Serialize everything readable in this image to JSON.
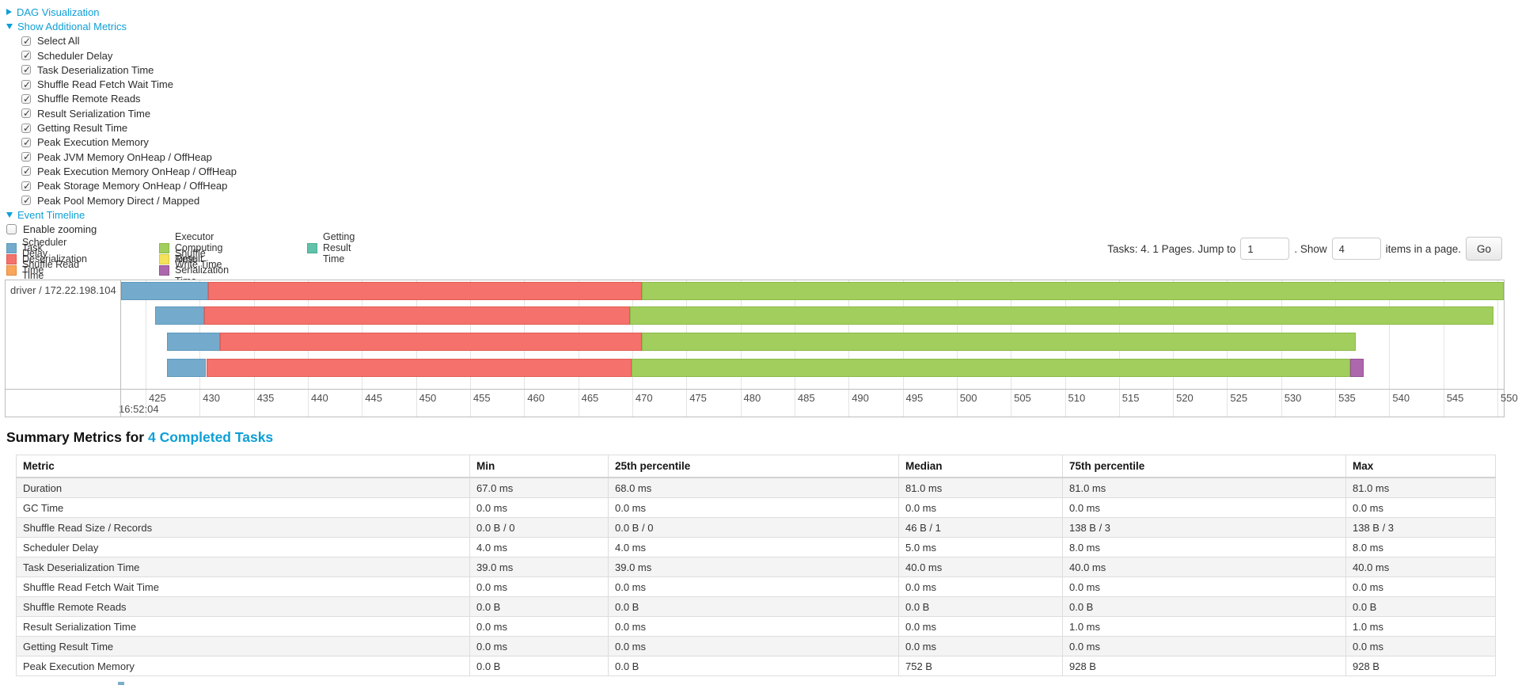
{
  "controls": {
    "dag": {
      "label": "DAG Visualization",
      "collapsed": true
    },
    "show_metrics": {
      "label": "Show Additional Metrics",
      "collapsed": false
    },
    "metric_checkboxes": [
      {
        "label": "Select All",
        "checked": true
      },
      {
        "label": "Scheduler Delay",
        "checked": true
      },
      {
        "label": "Task Deserialization Time",
        "checked": true
      },
      {
        "label": "Shuffle Read Fetch Wait Time",
        "checked": true
      },
      {
        "label": "Shuffle Remote Reads",
        "checked": true
      },
      {
        "label": "Result Serialization Time",
        "checked": true
      },
      {
        "label": "Getting Result Time",
        "checked": true
      },
      {
        "label": "Peak Execution Memory",
        "checked": true
      },
      {
        "label": "Peak JVM Memory OnHeap / OffHeap",
        "checked": true
      },
      {
        "label": "Peak Execution Memory OnHeap / OffHeap",
        "checked": true
      },
      {
        "label": "Peak Storage Memory OnHeap / OffHeap",
        "checked": true
      },
      {
        "label": "Peak Pool Memory Direct / Mapped",
        "checked": true
      }
    ],
    "event_timeline": {
      "label": "Event Timeline",
      "collapsed": false
    },
    "enable_zooming": {
      "label": "Enable zooming",
      "checked": false
    }
  },
  "pagination": {
    "tasks_text": "Tasks: 4. 1 Pages. Jump to",
    "jump_value": "1",
    "between_text": ". Show",
    "show_value": "4",
    "items_text": "items in a page.",
    "go_label": "Go"
  },
  "chart_data": {
    "type": "timeline",
    "title": "Event Timeline",
    "group_label": "driver / 172.22.198.104",
    "axis": {
      "major_label": "16:52:04",
      "unit": "milliseconds within second 16:52:04",
      "tick_start": 425,
      "tick_end": 550,
      "tick_step": 5,
      "view_min": 422.73,
      "view_max": 550.8
    },
    "colors": {
      "scheduler_delay": {
        "label": "Scheduler Delay",
        "fill": "#74ABCD",
        "border": "#5E99BD"
      },
      "task_deserialization": {
        "label": "Task Deserialization Time",
        "fill": "#F4726B",
        "border": "#E15B54"
      },
      "shuffle_read": {
        "label": "Shuffle Read Time",
        "fill": "#F9A65B",
        "border": "#E28B3B"
      },
      "executor_computing": {
        "label": "Executor Computing Time",
        "fill": "#A2CE5E",
        "border": "#8BBA45"
      },
      "shuffle_write": {
        "label": "Shuffle Write Time",
        "fill": "#F3E35B",
        "border": "#DCC93F"
      },
      "result_serialization": {
        "label": "Result Serialization Time",
        "fill": "#AD68AD",
        "border": "#945192"
      },
      "getting_result": {
        "label": "Getting Result Time",
        "fill": "#62C2A9",
        "border": "#48AD92"
      }
    },
    "legend_columns": [
      [
        "scheduler_delay",
        "task_deserialization",
        "shuffle_read"
      ],
      [
        "executor_computing",
        "shuffle_write",
        "result_serialization"
      ],
      [
        "getting_result"
      ]
    ],
    "tasks": [
      {
        "segments": [
          {
            "type": "scheduler_delay",
            "start": 422.7,
            "end": 430.8
          },
          {
            "type": "task_deserialization",
            "start": 430.8,
            "end": 470.9
          },
          {
            "type": "executor_computing",
            "start": 470.9,
            "end": 550.6
          }
        ]
      },
      {
        "segments": [
          {
            "type": "scheduler_delay",
            "start": 425.9,
            "end": 430.4
          },
          {
            "type": "task_deserialization",
            "start": 430.4,
            "end": 469.8
          },
          {
            "type": "executor_computing",
            "start": 469.8,
            "end": 549.6
          }
        ]
      },
      {
        "segments": [
          {
            "type": "scheduler_delay",
            "start": 427.0,
            "end": 431.9
          },
          {
            "type": "task_deserialization",
            "start": 431.9,
            "end": 470.9
          },
          {
            "type": "executor_computing",
            "start": 470.9,
            "end": 536.9
          }
        ]
      },
      {
        "segments": [
          {
            "type": "scheduler_delay",
            "start": 427.0,
            "end": 430.6
          },
          {
            "type": "task_deserialization",
            "start": 430.6,
            "end": 469.9
          },
          {
            "type": "executor_computing",
            "start": 469.9,
            "end": 536.4
          },
          {
            "type": "result_serialization",
            "start": 536.4,
            "end": 537.6
          }
        ]
      }
    ]
  },
  "summary": {
    "title_prefix": "Summary Metrics for",
    "title_link": "4 Completed Tasks",
    "table": {
      "columns": [
        "Metric",
        "Min",
        "25th percentile",
        "Median",
        "75th percentile",
        "Max"
      ],
      "rows": [
        {
          "metric": "Duration",
          "values": [
            "67.0 ms",
            "68.0 ms",
            "81.0 ms",
            "81.0 ms",
            "81.0 ms"
          ]
        },
        {
          "metric": "GC Time",
          "values": [
            "0.0 ms",
            "0.0 ms",
            "0.0 ms",
            "0.0 ms",
            "0.0 ms"
          ]
        },
        {
          "metric": "Shuffle Read Size / Records",
          "values": [
            "0.0 B / 0",
            "0.0 B / 0",
            "46 B / 1",
            "138 B / 3",
            "138 B / 3"
          ]
        },
        {
          "metric": "Scheduler Delay",
          "values": [
            "4.0 ms",
            "4.0 ms",
            "5.0 ms",
            "8.0 ms",
            "8.0 ms"
          ]
        },
        {
          "metric": "Task Deserialization Time",
          "values": [
            "39.0 ms",
            "39.0 ms",
            "40.0 ms",
            "40.0 ms",
            "40.0 ms"
          ]
        },
        {
          "metric": "Shuffle Read Fetch Wait Time",
          "values": [
            "0.0 ms",
            "0.0 ms",
            "0.0 ms",
            "0.0 ms",
            "0.0 ms"
          ]
        },
        {
          "metric": "Shuffle Remote Reads",
          "values": [
            "0.0 B",
            "0.0 B",
            "0.0 B",
            "0.0 B",
            "0.0 B"
          ]
        },
        {
          "metric": "Result Serialization Time",
          "values": [
            "0.0 ms",
            "0.0 ms",
            "0.0 ms",
            "1.0 ms",
            "1.0 ms"
          ]
        },
        {
          "metric": "Getting Result Time",
          "values": [
            "0.0 ms",
            "0.0 ms",
            "0.0 ms",
            "0.0 ms",
            "0.0 ms"
          ]
        },
        {
          "metric": "Peak Execution Memory",
          "values": [
            "0.0 B",
            "0.0 B",
            "752 B",
            "928 B",
            "928 B"
          ]
        }
      ]
    }
  }
}
